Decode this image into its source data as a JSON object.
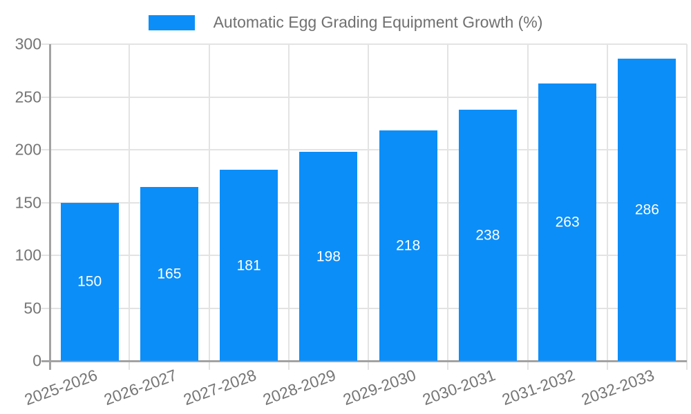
{
  "chart_data": {
    "type": "bar",
    "title": "Automatic Egg Grading Equipment Growth (%)",
    "categories": [
      "2025-2026",
      "2026-2027",
      "2027-2028",
      "2028-2029",
      "2029-2030",
      "2030-2031",
      "2031-2032",
      "2032-2033"
    ],
    "values": [
      150,
      165,
      181,
      198,
      218,
      238,
      263,
      286
    ],
    "xlabel": "",
    "ylabel": "",
    "ylim": [
      0,
      300
    ],
    "yticks": [
      0,
      50,
      100,
      150,
      200,
      250,
      300
    ],
    "grid": true,
    "legend_position": "top",
    "value_labels": "inside-center"
  },
  "colors": {
    "bar": "#0c8ef8",
    "value_label": "#ffffff",
    "grid": "#e3e3e3",
    "axis": "#a2a2a2",
    "tick_label": "#757575",
    "legend_text": "#707070",
    "background": "#ffffff"
  }
}
